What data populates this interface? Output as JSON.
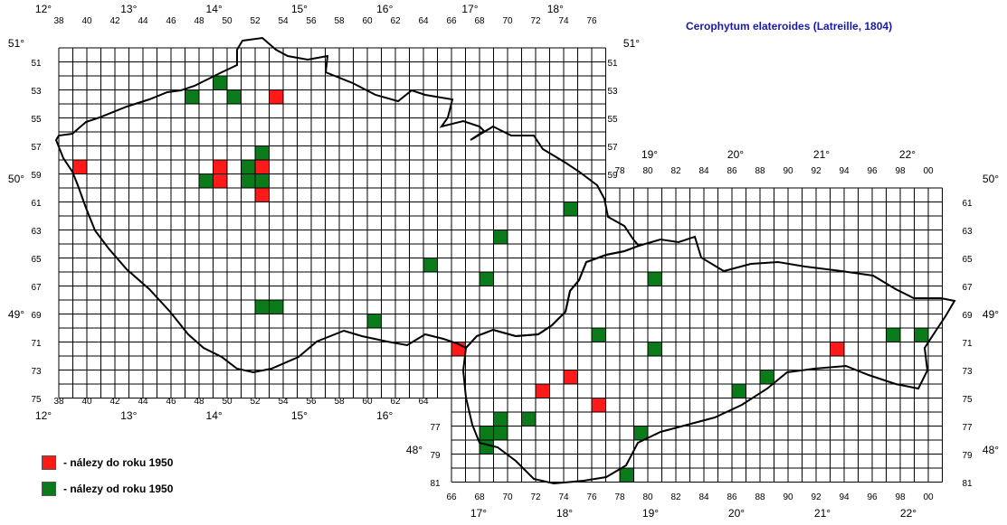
{
  "title": "Cerophytum elateroides (Latreille, 1804)",
  "colors": {
    "before_1950": "#ff1a1a",
    "since_1950": "#0a7a1a",
    "grid": "#000000",
    "title": "#1a1aa8"
  },
  "legend": [
    {
      "key": "before_1950",
      "label": "- nálezy do roku 1950"
    },
    {
      "key": "since_1950",
      "label": "- nálezy od roku 1950"
    }
  ],
  "west_grid": {
    "columns": [
      "38",
      "40",
      "42",
      "44",
      "46",
      "48",
      "50",
      "52",
      "54",
      "56",
      "58",
      "60",
      "62",
      "64",
      "66",
      "68",
      "70",
      "72",
      "74",
      "76"
    ],
    "rows": [
      "51",
      "53",
      "55",
      "57",
      "59",
      "61",
      "63",
      "65",
      "67",
      "69",
      "71",
      "73",
      "75"
    ],
    "longitudes": [
      "12°",
      "13°",
      "14°",
      "15°",
      "16°",
      "17°",
      "18°"
    ],
    "latitudes": [
      "51°",
      "50°",
      "49°"
    ]
  },
  "east_grid": {
    "columns": [
      "66",
      "68",
      "70",
      "72",
      "74",
      "76",
      "78",
      "80",
      "82",
      "84",
      "86",
      "88",
      "90",
      "92",
      "94",
      "96",
      "98",
      "00"
    ],
    "top_columns": [
      "78",
      "80",
      "82",
      "84",
      "86",
      "88",
      "90",
      "92",
      "94",
      "96",
      "98",
      "00"
    ],
    "rows": [
      "61",
      "63",
      "65",
      "67",
      "69",
      "71",
      "73",
      "75",
      "77",
      "79",
      "81"
    ],
    "longitudes": [
      "17°",
      "18°",
      "19°",
      "20°",
      "21°",
      "22°"
    ],
    "top_longitudes": [
      "19°",
      "20°",
      "21°",
      "22°"
    ],
    "latitudes": [
      "50°",
      "49°",
      "48°"
    ]
  },
  "records": [
    {
      "col": "49",
      "row": "53",
      "period": "since_1950"
    },
    {
      "col": "47",
      "row": "54",
      "period": "since_1950"
    },
    {
      "col": "50",
      "row": "54",
      "period": "since_1950"
    },
    {
      "col": "53",
      "row": "54",
      "period": "before_1950"
    },
    {
      "col": "39",
      "row": "59",
      "period": "before_1950"
    },
    {
      "col": "49",
      "row": "59",
      "period": "before_1950"
    },
    {
      "col": "51",
      "row": "59",
      "period": "since_1950"
    },
    {
      "col": "52",
      "row": "59",
      "period": "before_1950"
    },
    {
      "col": "52",
      "row": "58",
      "period": "since_1950"
    },
    {
      "col": "48",
      "row": "60",
      "period": "since_1950"
    },
    {
      "col": "49",
      "row": "60",
      "period": "before_1950"
    },
    {
      "col": "51",
      "row": "60",
      "period": "since_1950"
    },
    {
      "col": "52",
      "row": "60",
      "period": "since_1950"
    },
    {
      "col": "52",
      "row": "61",
      "period": "before_1950"
    },
    {
      "col": "52",
      "row": "69",
      "period": "since_1950"
    },
    {
      "col": "53",
      "row": "69",
      "period": "since_1950"
    },
    {
      "col": "60",
      "row": "70",
      "period": "since_1950"
    },
    {
      "col": "64",
      "row": "66",
      "period": "since_1950"
    },
    {
      "col": "68",
      "row": "67",
      "period": "since_1950"
    },
    {
      "col": "69",
      "row": "64",
      "period": "since_1950"
    },
    {
      "col": "74",
      "row": "62",
      "period": "since_1950"
    },
    {
      "col": "80",
      "row": "67",
      "period": "since_1950"
    },
    {
      "col": "66",
      "row": "72",
      "period": "before_1950"
    },
    {
      "col": "76",
      "row": "71",
      "period": "since_1950"
    },
    {
      "col": "80",
      "row": "72",
      "period": "since_1950"
    },
    {
      "col": "74",
      "row": "74",
      "period": "before_1950"
    },
    {
      "col": "72",
      "row": "75",
      "period": "before_1950"
    },
    {
      "col": "76",
      "row": "76",
      "period": "before_1950"
    },
    {
      "col": "86",
      "row": "75",
      "period": "since_1950"
    },
    {
      "col": "88",
      "row": "74",
      "period": "since_1950"
    },
    {
      "col": "69",
      "row": "77",
      "period": "since_1950"
    },
    {
      "col": "71",
      "row": "77",
      "period": "since_1950"
    },
    {
      "col": "68",
      "row": "78",
      "period": "since_1950"
    },
    {
      "col": "69",
      "row": "78",
      "period": "since_1950"
    },
    {
      "col": "68",
      "row": "79",
      "period": "since_1950"
    },
    {
      "col": "79",
      "row": "78",
      "period": "since_1950"
    },
    {
      "col": "78",
      "row": "81",
      "period": "since_1950"
    },
    {
      "col": "93",
      "row": "72",
      "period": "before_1950"
    },
    {
      "col": "97",
      "row": "71",
      "period": "since_1950"
    },
    {
      "col": "99",
      "row": "71",
      "period": "since_1950"
    }
  ]
}
